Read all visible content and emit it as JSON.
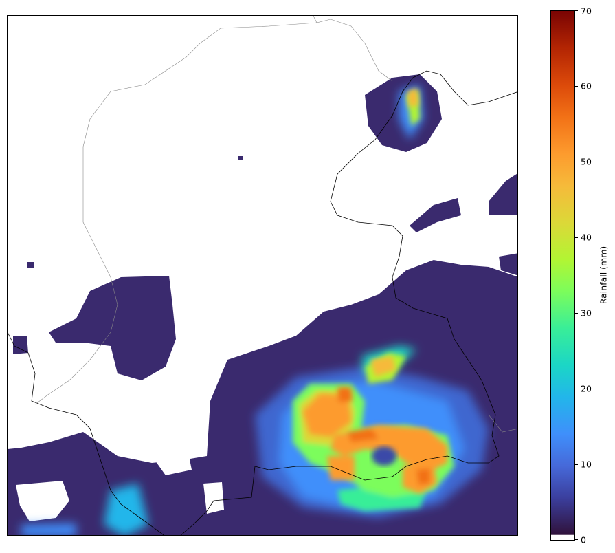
{
  "map": {
    "colormap": "turbo",
    "colors": {
      "background": "#ffffff",
      "coastline": "#000000",
      "border_gray": "#888888",
      "low": "#30123b",
      "mid": "#3f8ffb",
      "high": "#7a0403"
    }
  },
  "colorbar": {
    "label": "Rainfall (mm)",
    "min": 0,
    "max": 70,
    "ticks": [
      "0",
      "10",
      "20",
      "30",
      "40",
      "50",
      "60",
      "70"
    ]
  }
}
